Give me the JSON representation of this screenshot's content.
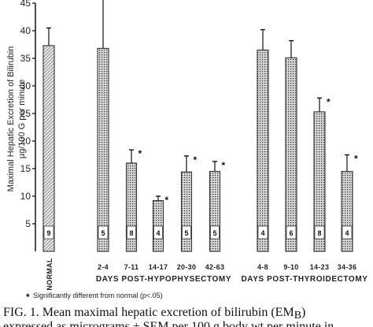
{
  "chart_data": {
    "type": "bar",
    "y_label_line1": "Maximal Hepatic Excretion of Bilirubin",
    "y_label_line2": "µg/100 G per minute",
    "ylim": [
      0,
      45
    ],
    "yticks": [
      5,
      10,
      15,
      20,
      25,
      30,
      35,
      40,
      45
    ],
    "grid": false,
    "bars": [
      {
        "label": "NORMAL",
        "value": 37.3,
        "err": 3.2,
        "n": "9",
        "sig": false,
        "group": "normal"
      },
      {
        "label": "2-4",
        "value": 36.8,
        "err": 9.0,
        "n": "5",
        "sig": false,
        "group": "hypophysectomy"
      },
      {
        "label": "7-11",
        "value": 16.0,
        "err": 2.4,
        "n": "8",
        "sig": true,
        "group": "hypophysectomy"
      },
      {
        "label": "14-17",
        "value": 9.2,
        "err": 0.8,
        "n": "4",
        "sig": true,
        "group": "hypophysectomy"
      },
      {
        "label": "20-30",
        "value": 14.4,
        "err": 2.9,
        "n": "5",
        "sig": true,
        "group": "hypophysectomy"
      },
      {
        "label": "42-63",
        "value": 14.5,
        "err": 1.8,
        "n": "5",
        "sig": true,
        "group": "hypophysectomy"
      },
      {
        "label": "4-8",
        "value": 36.5,
        "err": 3.7,
        "n": "4",
        "sig": false,
        "group": "thyroidectomy"
      },
      {
        "label": "9-10",
        "value": 35.1,
        "err": 3.1,
        "n": "6",
        "sig": false,
        "group": "thyroidectomy"
      },
      {
        "label": "14-23",
        "value": 25.3,
        "err": 2.5,
        "n": "8",
        "sig": true,
        "group": "thyroidectomy"
      },
      {
        "label": "34-36",
        "value": 14.5,
        "err": 3.0,
        "n": "4",
        "sig": true,
        "group": "thyroidectomy"
      }
    ],
    "group_labels": {
      "hypophysectomy": "DAYS POST-HYPOPHYSECTOMY",
      "thyroidectomy": "DAYS POST-THYROIDECTOMY"
    },
    "sig_marker": "*",
    "footnote": "Significantly different from normal (p<.05)"
  },
  "caption": {
    "line1": "FIG. 1. Mean maximal hepatic excretion of bilirubin (EM",
    "line1_sub": "B",
    "line1_end": ")",
    "line2": "expressed as micrograms ± SEM per 100 g body wt per minute in"
  },
  "colors": {
    "bar_fill": "#e4e4e4",
    "hatch": "#333333",
    "axis": "#222222"
  }
}
